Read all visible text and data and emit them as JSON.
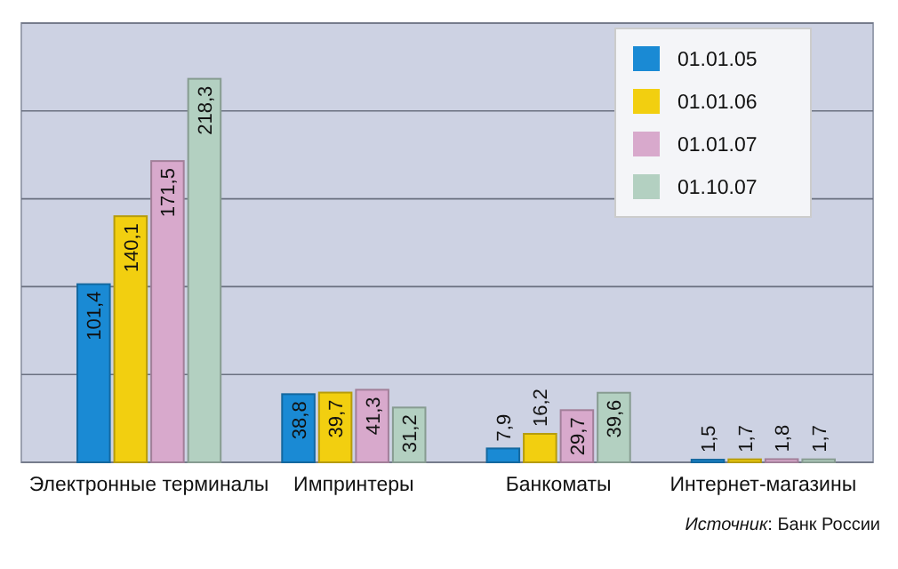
{
  "chart_data": {
    "type": "bar",
    "categories": [
      "Электронные терминалы",
      "Импринтеры",
      "Банкоматы",
      "Интернет-магазины"
    ],
    "series": [
      {
        "name": "01.01.05",
        "color": "#1a8ad4",
        "values": [
          101.4,
          38.8,
          7.9,
          1.5
        ],
        "value_labels": [
          "101,4",
          "38,8",
          "7,9",
          "1,5"
        ]
      },
      {
        "name": "01.01.06",
        "color": "#f2cf10",
        "values": [
          140.1,
          39.7,
          16.2,
          1.7
        ],
        "value_labels": [
          "140,1",
          "39,7",
          "16,2",
          "1,7"
        ]
      },
      {
        "name": "01.01.07",
        "color": "#d8a9cc",
        "values": [
          171.5,
          41.3,
          29.7,
          1.8
        ],
        "value_labels": [
          "171,5",
          "41,3",
          "29,7",
          "1,8"
        ]
      },
      {
        "name": "01.10.07",
        "color": "#b3d0c1",
        "values": [
          218.3,
          31.2,
          39.6,
          1.7
        ],
        "value_labels": [
          "218,3",
          "31,2",
          "39,6",
          "1,7"
        ]
      }
    ],
    "ylim": [
      0,
      250
    ],
    "yticks": [
      {
        "value": 0,
        "label": null
      },
      {
        "value": 50,
        "label": null
      },
      {
        "value": 100,
        "label": null
      },
      {
        "value": 150,
        "label": null
      },
      {
        "value": 200,
        "label": null
      },
      {
        "value": 250,
        "label": null
      }
    ],
    "grid": "y",
    "legend": "top right",
    "tick_labels": "x",
    "annotations": [
      "Источник: Банк России"
    ]
  }
}
